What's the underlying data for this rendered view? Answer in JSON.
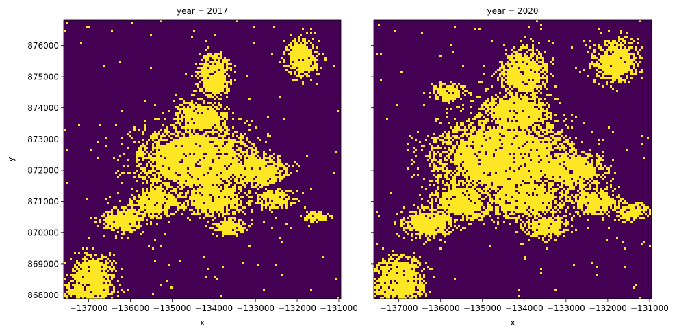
{
  "figure": {
    "ylabel": "y"
  },
  "colors": {
    "background_class": "#440154",
    "urban_class": "#fde725",
    "axis": "#000000"
  },
  "chart_data": [
    {
      "type": "heatmap",
      "title": "year = 2017",
      "xlabel": "x",
      "ylabel": "y",
      "xlim": [
        -137600,
        -130950
      ],
      "ylim": [
        867880,
        876820
      ],
      "xticks": [
        -137000,
        -136000,
        -135000,
        -134000,
        -133000,
        -132000,
        -131000
      ],
      "xtick_labels": [
        "−137000",
        "−136000",
        "−135000",
        "−134000",
        "−133000",
        "−132000",
        "−131000"
      ],
      "yticks": [
        868000,
        869000,
        870000,
        871000,
        872000,
        873000,
        874000,
        875000,
        876000
      ],
      "ytick_labels": [
        "868000",
        "869000",
        "870000",
        "871000",
        "872000",
        "873000",
        "874000",
        "875000",
        "876000"
      ],
      "values": "binary raster: 0 = background (dark purple), 1 = urban extent (yellow)",
      "urban_regions": [
        {
          "center": [
            -134400,
            872300
          ],
          "radius": [
            1500,
            1250
          ]
        },
        {
          "center": [
            -134000,
            871100
          ],
          "radius": [
            900,
            600
          ]
        },
        {
          "center": [
            -134300,
            873700
          ],
          "radius": [
            650,
            600
          ]
        },
        {
          "center": [
            -134000,
            875000
          ],
          "radius": [
            450,
            800
          ]
        },
        {
          "center": [
            -133000,
            872000
          ],
          "radius": [
            800,
            550
          ]
        },
        {
          "center": [
            -135400,
            871000
          ],
          "radius": [
            650,
            550
          ]
        },
        {
          "center": [
            -136200,
            870400
          ],
          "radius": [
            550,
            450
          ]
        },
        {
          "center": [
            -136900,
            868700
          ],
          "radius": [
            550,
            650
          ]
        },
        {
          "center": [
            -137000,
            868200
          ],
          "radius": [
            650,
            350
          ]
        },
        {
          "center": [
            -131900,
            875600
          ],
          "radius": [
            450,
            650
          ]
        },
        {
          "center": [
            -132500,
            871100
          ],
          "radius": [
            500,
            350
          ]
        },
        {
          "center": [
            -133600,
            870200
          ],
          "radius": [
            450,
            300
          ]
        },
        {
          "center": [
            -131500,
            870500
          ],
          "radius": [
            350,
            200
          ]
        }
      ]
    },
    {
      "type": "heatmap",
      "title": "year = 2020",
      "xlabel": "x",
      "ylabel": "",
      "xlim": [
        -137600,
        -130950
      ],
      "ylim": [
        867880,
        876820
      ],
      "xticks": [
        -137000,
        -136000,
        -135000,
        -134000,
        -133000,
        -132000,
        -131000
      ],
      "xtick_labels": [
        "−137000",
        "−136000",
        "−135000",
        "−134000",
        "−133000",
        "−132000",
        "−131000"
      ],
      "yticks": [
        868000,
        869000,
        870000,
        871000,
        872000,
        873000,
        874000,
        875000,
        876000
      ],
      "ytick_labels": [
        "",
        "",
        "",
        "",
        "",
        "",
        "",
        "",
        ""
      ],
      "values": "binary raster: 0 = background (dark purple), 1 = urban extent (yellow)",
      "urban_regions": [
        {
          "center": [
            -134500,
            872400
          ],
          "radius": [
            1800,
            1400
          ]
        },
        {
          "center": [
            -134000,
            871100
          ],
          "radius": [
            1100,
            700
          ]
        },
        {
          "center": [
            -134200,
            873800
          ],
          "radius": [
            900,
            750
          ]
        },
        {
          "center": [
            -134000,
            875100
          ],
          "radius": [
            600,
            900
          ]
        },
        {
          "center": [
            -132900,
            872000
          ],
          "radius": [
            950,
            650
          ]
        },
        {
          "center": [
            -135500,
            871000
          ],
          "radius": [
            800,
            650
          ]
        },
        {
          "center": [
            -136300,
            870300
          ],
          "radius": [
            650,
            550
          ]
        },
        {
          "center": [
            -137000,
            868600
          ],
          "radius": [
            650,
            750
          ]
        },
        {
          "center": [
            -137100,
            868200
          ],
          "radius": [
            750,
            400
          ]
        },
        {
          "center": [
            -131800,
            875500
          ],
          "radius": [
            600,
            750
          ]
        },
        {
          "center": [
            -132300,
            871000
          ],
          "radius": [
            650,
            450
          ]
        },
        {
          "center": [
            -133500,
            870200
          ],
          "radius": [
            600,
            400
          ]
        },
        {
          "center": [
            -131400,
            870700
          ],
          "radius": [
            450,
            300
          ]
        },
        {
          "center": [
            -135800,
            874500
          ],
          "radius": [
            450,
            300
          ]
        }
      ]
    }
  ]
}
